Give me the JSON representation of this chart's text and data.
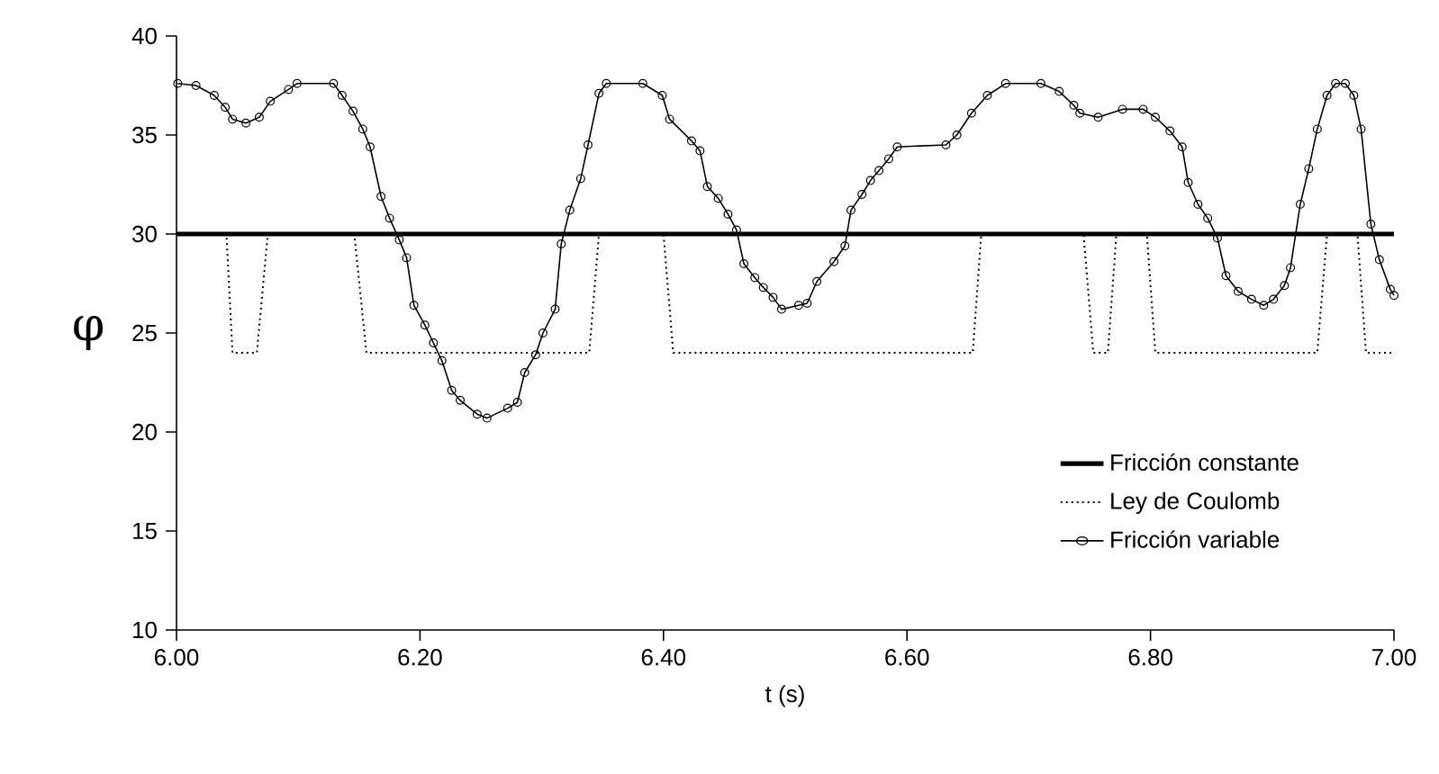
{
  "chart_data": {
    "type": "line",
    "xlabel": "t (s)",
    "ylabel": "φ",
    "xlim": [
      6.0,
      7.0
    ],
    "ylim": [
      10,
      40
    ],
    "xticks": [
      {
        "value": 6.0,
        "label": "6.00"
      },
      {
        "value": 6.2,
        "label": "6.20"
      },
      {
        "value": 6.4,
        "label": "6.40"
      },
      {
        "value": 6.6,
        "label": "6.60"
      },
      {
        "value": 6.8,
        "label": "6.80"
      },
      {
        "value": 7.0,
        "label": "7.00"
      }
    ],
    "yticks": [
      10,
      15,
      20,
      25,
      30,
      35,
      40
    ],
    "grid": false,
    "legend": "bottom right",
    "series": [
      {
        "name": "Fricción constante",
        "color": "#000000",
        "line_style": "solid",
        "marker": "none",
        "x": [
          6.0,
          7.0
        ],
        "values": [
          30,
          30
        ]
      },
      {
        "name": "Ley de Coulomb",
        "color": "#000000",
        "line_style": "dotted",
        "marker": "none",
        "x": [
          6.0,
          6.041,
          6.046,
          6.066,
          6.075,
          6.146,
          6.156,
          6.339,
          6.347,
          6.4,
          6.408,
          6.654,
          6.661,
          6.745,
          6.753,
          6.765,
          6.772,
          6.797,
          6.804,
          6.937,
          6.945,
          6.97,
          6.977,
          7.0
        ],
        "values": [
          30,
          30,
          24,
          24,
          30,
          30,
          24,
          24,
          30,
          30,
          24,
          24,
          30,
          30,
          24,
          24,
          30,
          30,
          24,
          24,
          30,
          30,
          24,
          24
        ]
      },
      {
        "name": "Fricción variable",
        "color": "#000000",
        "line_style": "solid",
        "marker": "circle",
        "x": [
          6.001,
          6.016,
          6.031,
          6.04,
          6.046,
          6.057,
          6.068,
          6.077,
          6.092,
          6.099,
          6.129,
          6.136,
          6.145,
          6.153,
          6.159,
          6.168,
          6.175,
          6.183,
          6.189,
          6.195,
          6.204,
          6.211,
          6.218,
          6.226,
          6.233,
          6.247,
          6.255,
          6.272,
          6.28,
          6.286,
          6.295,
          6.301,
          6.311,
          6.316,
          6.323,
          6.332,
          6.338,
          6.347,
          6.353,
          6.383,
          6.399,
          6.405,
          6.423,
          6.43,
          6.436,
          6.445,
          6.453,
          6.46,
          6.466,
          6.475,
          6.482,
          6.49,
          6.497,
          6.511,
          6.518,
          6.526,
          6.54,
          6.549,
          6.554,
          6.563,
          6.57,
          6.577,
          6.585,
          6.592,
          6.632,
          6.641,
          6.653,
          6.666,
          6.681,
          6.71,
          6.725,
          6.737,
          6.742,
          6.757,
          6.777,
          6.794,
          6.804,
          6.816,
          6.826,
          6.831,
          6.839,
          6.847,
          6.855,
          6.862,
          6.872,
          6.883,
          6.893,
          6.901,
          6.91,
          6.915,
          6.923,
          6.93,
          6.937,
          6.945,
          6.952,
          6.96,
          6.967,
          6.973,
          6.981,
          6.988,
          6.997,
          7.0
        ],
        "values": [
          37.6,
          37.5,
          37.0,
          36.4,
          35.8,
          35.6,
          35.9,
          36.7,
          37.3,
          37.6,
          37.6,
          37.0,
          36.2,
          35.3,
          34.4,
          31.9,
          30.8,
          29.7,
          28.8,
          26.4,
          25.4,
          24.5,
          23.6,
          22.1,
          21.6,
          20.9,
          20.7,
          21.2,
          21.5,
          23.0,
          23.9,
          25.0,
          26.2,
          29.5,
          31.2,
          32.8,
          34.5,
          37.1,
          37.6,
          37.6,
          37.0,
          35.8,
          34.7,
          34.2,
          32.4,
          31.8,
          31.0,
          30.2,
          28.5,
          27.8,
          27.3,
          26.8,
          26.2,
          26.4,
          26.5,
          27.6,
          28.6,
          29.4,
          31.2,
          32.0,
          32.7,
          33.2,
          33.8,
          34.4,
          34.5,
          35.0,
          36.1,
          37.0,
          37.6,
          37.6,
          37.2,
          36.5,
          36.1,
          35.9,
          36.3,
          36.3,
          35.9,
          35.2,
          34.4,
          32.6,
          31.5,
          30.8,
          29.8,
          27.9,
          27.1,
          26.7,
          26.4,
          26.7,
          27.4,
          28.3,
          31.5,
          33.3,
          35.3,
          37.0,
          37.6,
          37.6,
          37.0,
          35.3,
          30.5,
          28.7,
          27.2,
          26.9
        ]
      }
    ]
  }
}
